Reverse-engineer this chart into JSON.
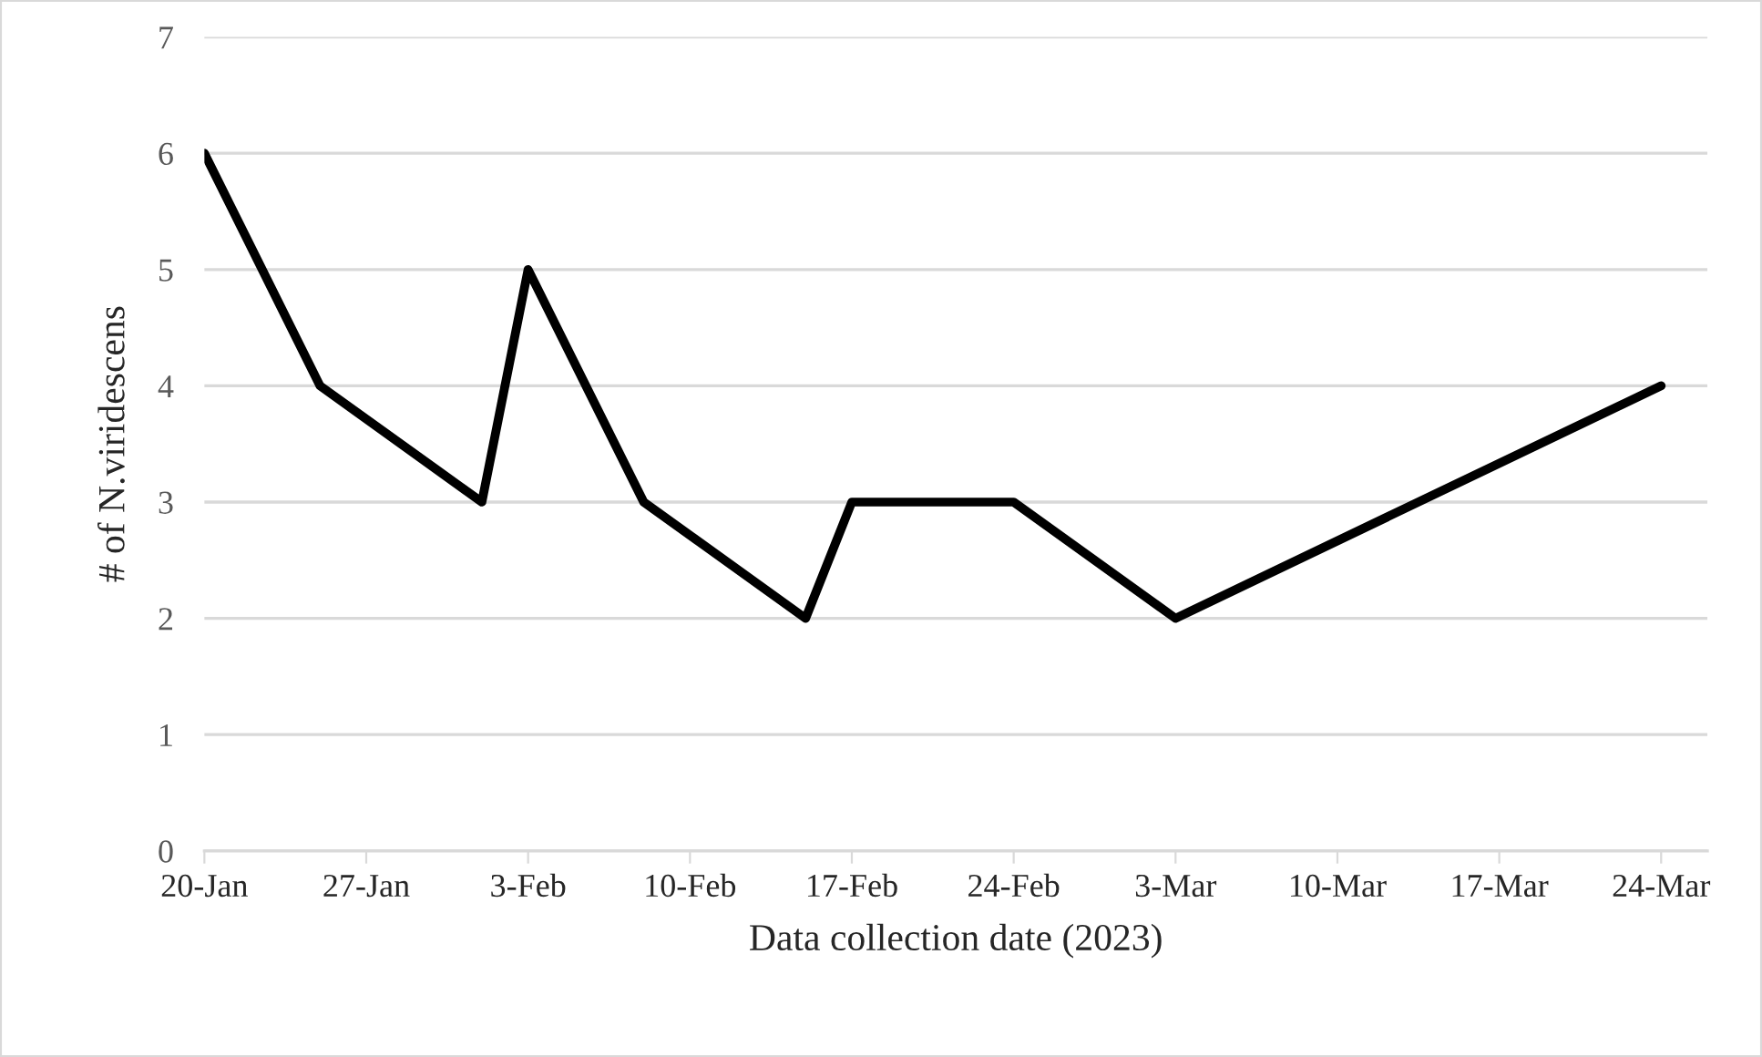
{
  "chart_data": {
    "type": "line",
    "xlabel": "Data collection date (2023)",
    "ylabel": "# of N.viridescens",
    "x": [
      "2023-01-20",
      "2023-01-25",
      "2023-02-01",
      "2023-02-03",
      "2023-02-08",
      "2023-02-15",
      "2023-02-17",
      "2023-02-24",
      "2023-03-03",
      "2023-03-24"
    ],
    "series": [
      {
        "color": "#000000",
        "values": [
          6,
          4,
          3,
          5,
          3,
          2,
          3,
          3,
          2,
          4
        ]
      }
    ],
    "xlim": [
      "2023-01-20",
      "2023-03-26"
    ],
    "xticks": [
      {
        "value": "2023-01-20",
        "label": "20-Jan"
      },
      {
        "value": "2023-01-27",
        "label": "27-Jan"
      },
      {
        "value": "2023-02-03",
        "label": "3-Feb"
      },
      {
        "value": "2023-02-10",
        "label": "10-Feb"
      },
      {
        "value": "2023-02-17",
        "label": "17-Feb"
      },
      {
        "value": "2023-02-24",
        "label": "24-Feb"
      },
      {
        "value": "2023-03-03",
        "label": "3-Mar"
      },
      {
        "value": "2023-03-10",
        "label": "10-Mar"
      },
      {
        "value": "2023-03-17",
        "label": "17-Mar"
      },
      {
        "value": "2023-03-24",
        "label": "24-Mar"
      }
    ],
    "ylim": [
      0,
      7
    ],
    "yticks": [
      0,
      1,
      2,
      3,
      4,
      5,
      6,
      7
    ],
    "grid": "y",
    "marker": "none",
    "line_style": "solid",
    "legend": false
  }
}
